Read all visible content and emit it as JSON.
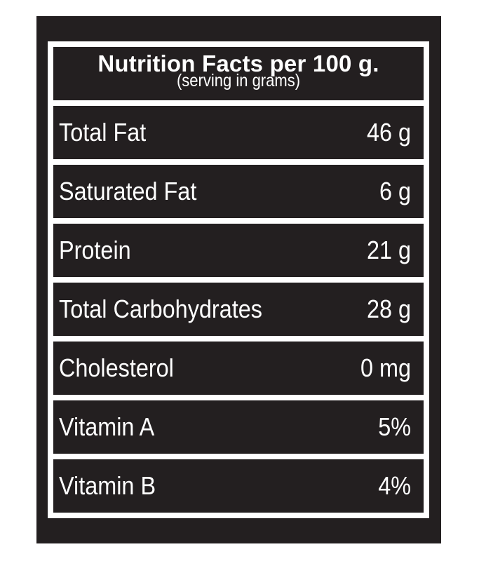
{
  "header": {
    "title": "Nutrition Facts per 100 g.",
    "subtitle": "(serving in grams)"
  },
  "nutrients": [
    {
      "name": "Total Fat",
      "value": "46 g"
    },
    {
      "name": "Saturated Fat",
      "value": "6 g"
    },
    {
      "name": "Protein",
      "value": "21 g"
    },
    {
      "name": "Total Carbohydrates",
      "value": "28 g"
    },
    {
      "name": "Cholesterol",
      "value": "0 mg"
    },
    {
      "name": "Vitamin A",
      "value": "5%"
    },
    {
      "name": "Vitamin B",
      "value": "4%"
    }
  ],
  "colors": {
    "panel": "#231f20",
    "text": "#ffffff",
    "background": "#ffffff"
  }
}
